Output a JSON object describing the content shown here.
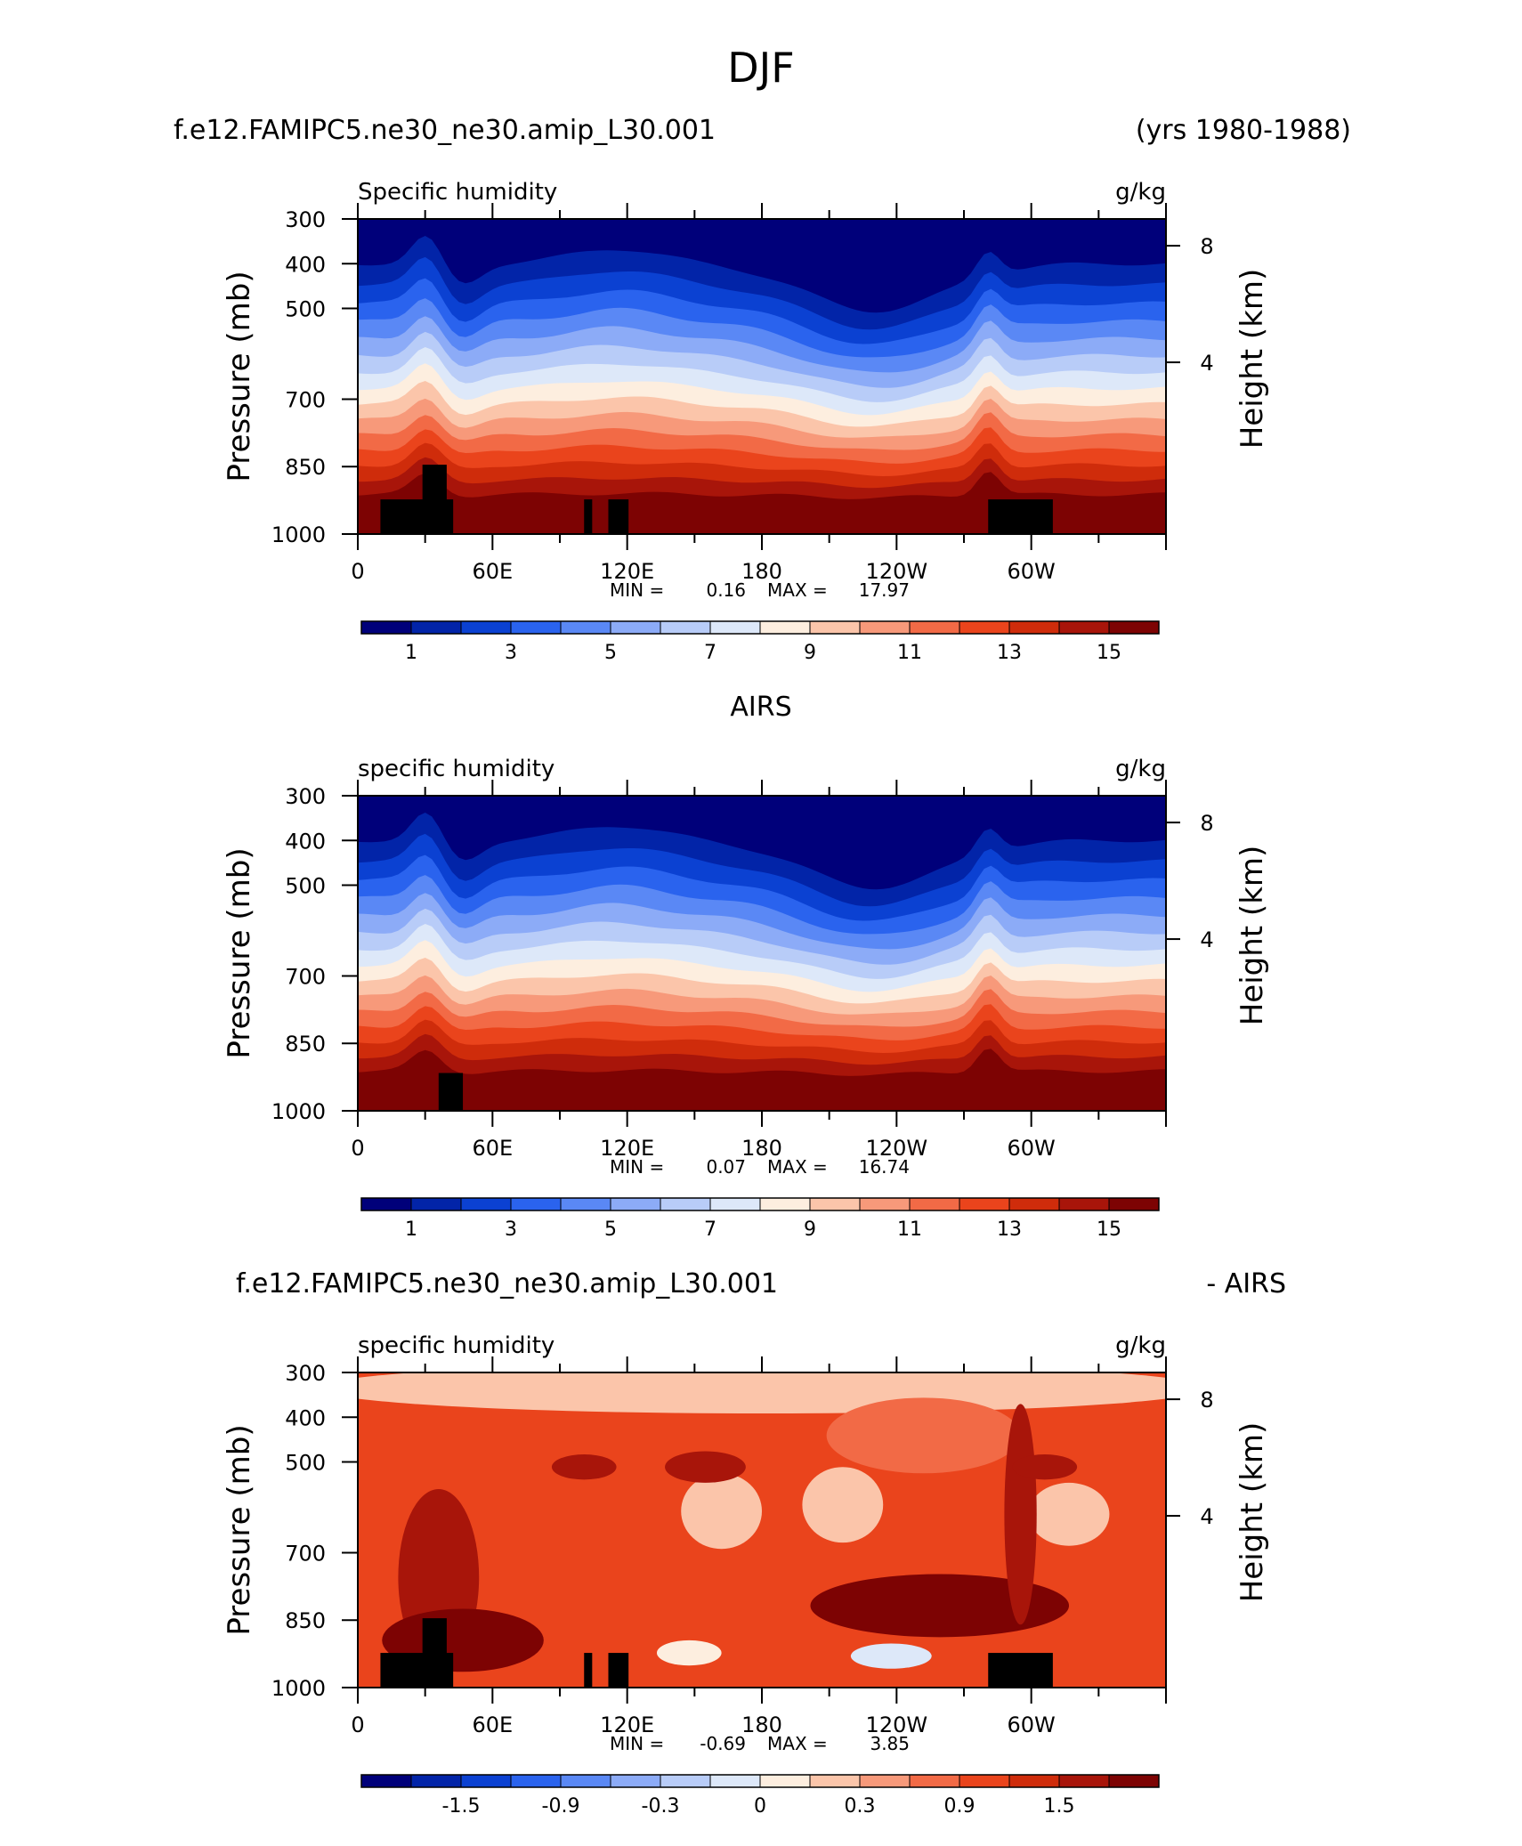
{
  "figure": {
    "title": "DJF"
  },
  "chart_data": [
    {
      "type": "heatmap",
      "title_left": "f.e12.FAMIPC5.ne30_ne30.amip_L30.001",
      "title_right": "(yrs 1980-1988)",
      "variable_label": "Specific humidity",
      "units": "g/kg",
      "ylabel": "Pressure (mb)",
      "ylabel_right": "Height (km)",
      "yticks": [
        "300",
        "400",
        "500",
        "700",
        "850",
        "1000"
      ],
      "yticks_right": [
        "8",
        "4"
      ],
      "xticks": [
        "0",
        "60E",
        "120E",
        "180",
        "120W",
        "60W"
      ],
      "ylim": [
        1000,
        300
      ],
      "min_label": "MIN =",
      "min_value": "0.16",
      "max_label": "MAX =",
      "max_value": "17.97",
      "colorbar_labels": [
        "1",
        "3",
        "5",
        "7",
        "9",
        "11",
        "13",
        "15"
      ],
      "colorbar_colors": [
        "#00007a",
        "#0224a8",
        "#0b41d2",
        "#2a63ee",
        "#5a88f5",
        "#8cabf7",
        "#b8ccf8",
        "#dde8f9",
        "#fdeedf",
        "#fbc5aa",
        "#f7997a",
        "#f26a46",
        "#ea441c",
        "#cf2c0b",
        "#a8150a",
        "#7d0303"
      ],
      "shading": "moist"
    },
    {
      "type": "heatmap",
      "title_center": "AIRS",
      "variable_label": "specific humidity",
      "units": "g/kg",
      "ylabel": "Pressure (mb)",
      "ylabel_right": "Height (km)",
      "yticks": [
        "300",
        "400",
        "500",
        "700",
        "850",
        "1000"
      ],
      "yticks_right": [
        "8",
        "4"
      ],
      "xticks": [
        "0",
        "60E",
        "120E",
        "180",
        "120W",
        "60W"
      ],
      "ylim": [
        1000,
        300
      ],
      "min_label": "MIN =",
      "min_value": "0.07",
      "max_label": "MAX =",
      "max_value": "16.74",
      "colorbar_labels": [
        "1",
        "3",
        "5",
        "7",
        "9",
        "11",
        "13",
        "15"
      ],
      "colorbar_colors": [
        "#00007a",
        "#0224a8",
        "#0b41d2",
        "#2a63ee",
        "#5a88f5",
        "#8cabf7",
        "#b8ccf8",
        "#dde8f9",
        "#fdeedf",
        "#fbc5aa",
        "#f7997a",
        "#f26a46",
        "#ea441c",
        "#cf2c0b",
        "#a8150a",
        "#7d0303"
      ],
      "shading": "moist"
    },
    {
      "type": "heatmap",
      "title_left": "f.e12.FAMIPC5.ne30_ne30.amip_L30.001",
      "title_right": "- AIRS",
      "variable_label": "specific humidity",
      "units": "g/kg",
      "ylabel": "Pressure (mb)",
      "ylabel_right": "Height (km)",
      "yticks": [
        "300",
        "400",
        "500",
        "700",
        "850",
        "1000"
      ],
      "yticks_right": [
        "8",
        "4"
      ],
      "xticks": [
        "0",
        "60E",
        "120E",
        "180",
        "120W",
        "60W"
      ],
      "ylim": [
        1000,
        300
      ],
      "min_label": "MIN =",
      "min_value": "-0.69",
      "max_label": "MAX =",
      "max_value": "3.85",
      "colorbar_labels": [
        "-1.5",
        "-0.9",
        "-0.3",
        "0",
        "0.3",
        "0.9",
        "1.5"
      ],
      "colorbar_colors": [
        "#00007a",
        "#0224a8",
        "#0b41d2",
        "#2a63ee",
        "#5a88f5",
        "#8cabf7",
        "#b8ccf8",
        "#dde8f9",
        "#fdeedf",
        "#fbc5aa",
        "#f7997a",
        "#f26a46",
        "#ea441c",
        "#cf2c0b",
        "#a8150a",
        "#7d0303"
      ],
      "shading": "diff"
    }
  ]
}
